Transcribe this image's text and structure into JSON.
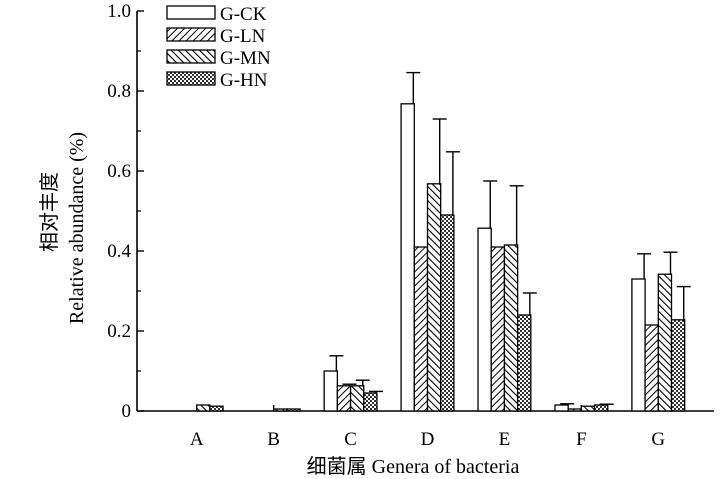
{
  "chart_data": {
    "type": "bar",
    "categories": [
      "A",
      "B",
      "C",
      "D",
      "E",
      "F",
      "G"
    ],
    "series": [
      {
        "name": "G-CK",
        "values": [
          0.0,
          0.0,
          0.1,
          0.768,
          0.457,
          0.015,
          0.33
        ],
        "errors": [
          0.0,
          0.0,
          0.038,
          0.078,
          0.118,
          0.003,
          0.063
        ],
        "pattern": "blank"
      },
      {
        "name": "G-LN",
        "values": [
          0.0,
          0.0,
          0.063,
          0.41,
          0.41,
          0.005,
          0.215
        ],
        "errors": [
          0.0,
          0.0,
          0.004,
          0.0,
          0.0,
          0.0,
          0.0
        ],
        "pattern": "diag-right"
      },
      {
        "name": "G-MN",
        "values": [
          0.015,
          0.005,
          0.063,
          0.568,
          0.415,
          0.012,
          0.342
        ],
        "errors": [
          0.0,
          0.0,
          0.014,
          0.162,
          0.148,
          0.0,
          0.055
        ],
        "pattern": "diag-left"
      },
      {
        "name": "G-HN",
        "values": [
          0.012,
          0.005,
          0.045,
          0.49,
          0.24,
          0.015,
          0.228
        ],
        "errors": [
          0.0,
          0.0,
          0.004,
          0.158,
          0.055,
          0.002,
          0.083
        ],
        "pattern": "dots"
      }
    ],
    "ylim": [
      0,
      1.0
    ],
    "yticks": [
      "0",
      "0.2",
      "0.4",
      "0.6",
      "0.8",
      "1.0"
    ],
    "ytick_values": [
      0,
      0.2,
      0.4,
      0.6,
      0.8,
      1.0
    ],
    "ylabel_cn": "相对丰度",
    "ylabel_en": "Relative abundance (%)",
    "xlabel": "细菌属 Genera of bacteria",
    "legend_position": "top-left",
    "grid": false
  }
}
